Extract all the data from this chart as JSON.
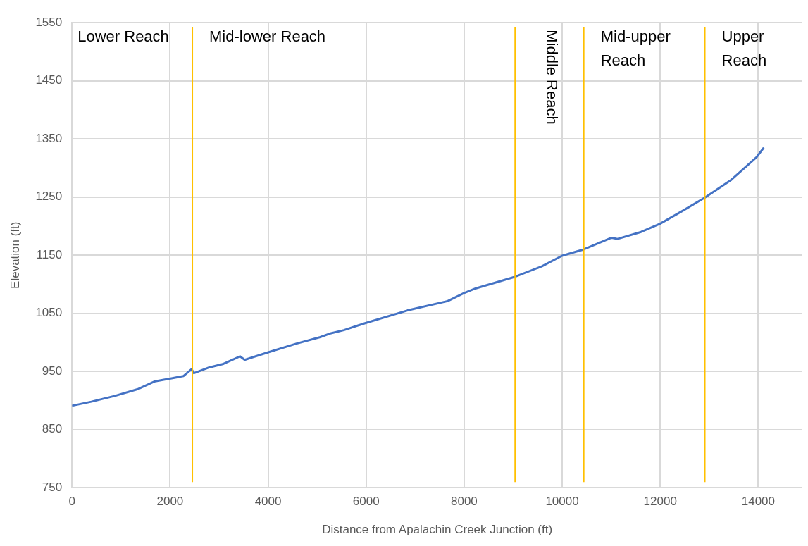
{
  "chart_data": {
    "type": "line",
    "xlabel": "Distance from Apalachin Creek Junction (ft)",
    "ylabel": "Elevation (ft)",
    "x": [
      0,
      394,
      876,
      1357,
      1694,
      2031,
      2272,
      2440,
      2488,
      2801,
      3090,
      3427,
      3523,
      4004,
      4582,
      5064,
      5256,
      5545,
      5978,
      6845,
      7663,
      8000,
      8241,
      9044,
      9589,
      9998,
      10440,
      11008,
      11128,
      11610,
      11996,
      12429,
      12910,
      13440,
      13969,
      14113
    ],
    "series": [
      {
        "color": "#4472c4",
        "values": [
          891,
          898,
          908,
          920,
          933,
          938,
          942,
          954,
          947,
          957,
          963,
          976,
          970,
          983,
          998,
          1009,
          1015,
          1021,
          1033,
          1055,
          1071,
          1085,
          1093,
          1113,
          1131,
          1149,
          1160,
          1180,
          1178,
          1190,
          1204,
          1225,
          1249,
          1279,
          1319,
          1335
        ]
      }
    ],
    "xlim": [
      0,
      14900
    ],
    "xticks": [
      0,
      2000,
      4000,
      6000,
      8000,
      10000,
      12000,
      14000
    ],
    "ylim": [
      750,
      1550
    ],
    "yticks": [
      750,
      850,
      950,
      1050,
      1150,
      1250,
      1350,
      1450,
      1550
    ],
    "grid": true,
    "legend": false,
    "marker": "none",
    "line_style": "solid",
    "ref_lines": [
      {
        "axis": "x",
        "value": 2455,
        "color": "#ffc000"
      },
      {
        "axis": "x",
        "value": 9040,
        "color": "#ffc000"
      },
      {
        "axis": "x",
        "value": 10440,
        "color": "#ffc000"
      },
      {
        "axis": "x",
        "value": 12910,
        "color": "#ffc000"
      }
    ],
    "annotations": [
      "Lower Reach",
      "Mid-lower Reach",
      "Middle Reach",
      "Mid-upper Reach",
      "Upper Reach"
    ]
  }
}
